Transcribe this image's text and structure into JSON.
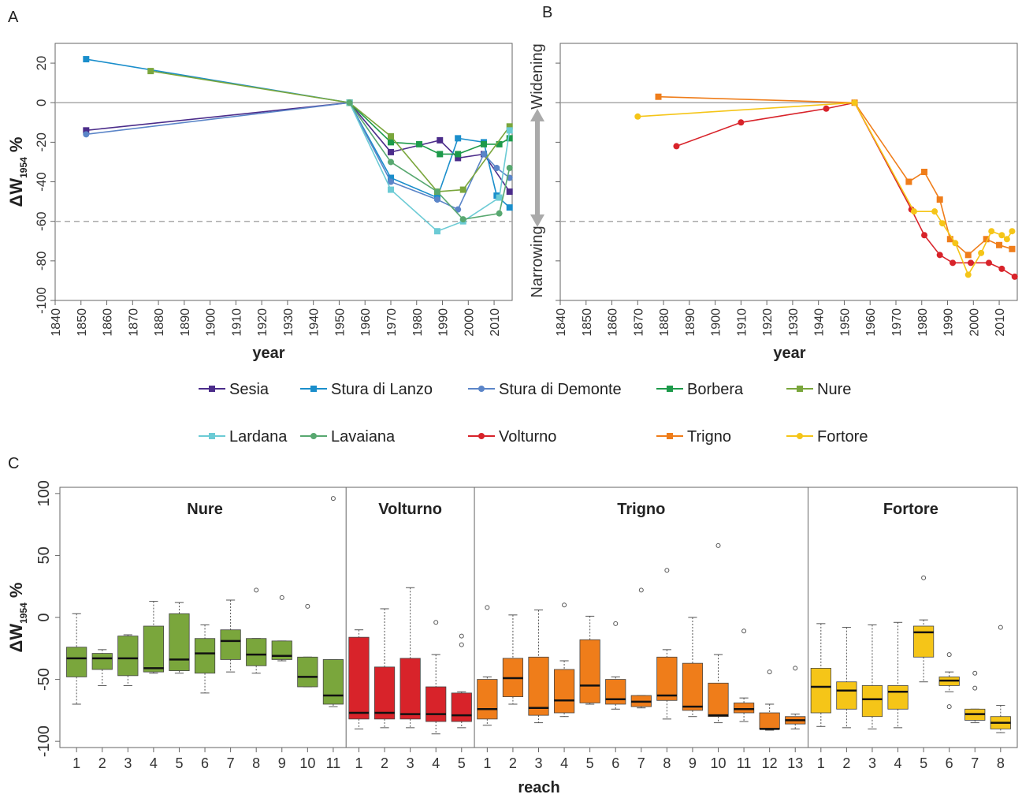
{
  "chart_data": [
    {
      "panel": "A",
      "type": "line",
      "xlabel": "year",
      "ylabel_main": "ΔW",
      "ylabel_sub": "1954",
      "ylabel_unit": " %",
      "xlim": [
        1840,
        2017
      ],
      "ylim": [
        -100,
        30
      ],
      "xticks": [
        1840,
        1850,
        1860,
        1870,
        1880,
        1890,
        1900,
        1910,
        1920,
        1930,
        1940,
        1950,
        1960,
        1970,
        1980,
        1990,
        2000,
        2010
      ],
      "yticks": [
        20,
        0,
        -20,
        -40,
        -60,
        -80,
        -100
      ],
      "reference_lines": [
        0,
        -60
      ],
      "series": [
        {
          "name": "Sesia",
          "color": "#4b2c8a",
          "marker": "square",
          "x": [
            1852,
            1954,
            1970,
            1989,
            1996,
            2006,
            2016
          ],
          "y": [
            -14,
            0,
            -25,
            -19,
            -28,
            -26,
            -45
          ]
        },
        {
          "name": "Stura di Lanzo",
          "color": "#1a8ecb",
          "marker": "square",
          "x": [
            1852,
            1954,
            1970,
            1988,
            1996,
            2006,
            2011,
            2016
          ],
          "y": [
            22,
            0,
            -38,
            -48,
            -18,
            -20,
            -47,
            -53
          ]
        },
        {
          "name": "Stura di Demonte",
          "color": "#5b85c8",
          "marker": "circle",
          "x": [
            1852,
            1954,
            1970,
            1988,
            1996,
            2006,
            2011,
            2016
          ],
          "y": [
            -16,
            0,
            -40,
            -49,
            -54,
            -26,
            -33,
            -38
          ]
        },
        {
          "name": "Borbera",
          "color": "#1d9a4a",
          "marker": "square",
          "x": [
            1954,
            1970,
            1981,
            1989,
            1996,
            2006,
            2012,
            2016
          ],
          "y": [
            0,
            -20,
            -21,
            -26,
            -26,
            -21,
            -21,
            -18
          ]
        },
        {
          "name": "Nure",
          "color": "#7aa63c",
          "marker": "square",
          "x": [
            1877,
            1954,
            1970,
            1988,
            1998,
            2016
          ],
          "y": [
            16,
            0,
            -17,
            -45,
            -44,
            -12
          ]
        },
        {
          "name": "Lardana",
          "color": "#6ccbd5",
          "marker": "square",
          "x": [
            1954,
            1970,
            1988,
            1998,
            2012,
            2016
          ],
          "y": [
            0,
            -44,
            -65,
            -60,
            -48,
            -14
          ]
        },
        {
          "name": "Lavaiana",
          "color": "#58a870",
          "marker": "circle",
          "x": [
            1954,
            1970,
            1988,
            1998,
            2012,
            2016
          ],
          "y": [
            0,
            -30,
            -45,
            -59,
            -56,
            -33
          ]
        }
      ]
    },
    {
      "panel": "B",
      "type": "line",
      "xlabel": "year",
      "ylabel_top": "Widening",
      "ylabel_bottom": "Narrowing",
      "xlim": [
        1840,
        2017
      ],
      "ylim": [
        -100,
        30
      ],
      "xticks": [
        1840,
        1850,
        1860,
        1870,
        1880,
        1890,
        1900,
        1910,
        1920,
        1930,
        1940,
        1950,
        1960,
        1970,
        1980,
        1990,
        2000,
        2010
      ],
      "reference_lines": [
        0,
        -60
      ],
      "series": [
        {
          "name": "Volturno",
          "color": "#d8232a",
          "marker": "circle",
          "x": [
            1885,
            1910,
            1943,
            1954,
            1976,
            1981,
            1987,
            1992,
            1999,
            2006,
            2011,
            2016
          ],
          "y": [
            -22,
            -10,
            -3,
            0,
            -54,
            -67,
            -77,
            -81,
            -81,
            -81,
            -84,
            -88
          ]
        },
        {
          "name": "Trigno",
          "color": "#ef7d1a",
          "marker": "square",
          "x": [
            1878,
            1954,
            1975,
            1981,
            1987,
            1991,
            1998,
            2005,
            2010,
            2015
          ],
          "y": [
            3,
            0,
            -40,
            -35,
            -49,
            -69,
            -77,
            -69,
            -72,
            -74
          ]
        },
        {
          "name": "Fortore",
          "color": "#f5c518",
          "marker": "circle",
          "x": [
            1870,
            1954,
            1977,
            1985,
            1988,
            1993,
            1998,
            2003,
            2007,
            2011,
            2013,
            2015
          ],
          "y": [
            -7,
            0,
            -55,
            -55,
            -61,
            -71,
            -87,
            -76,
            -65,
            -67,
            -69,
            -65
          ]
        }
      ]
    },
    {
      "panel": "C",
      "type": "boxplot",
      "xlabel": "reach",
      "ylabel_main": "ΔW",
      "ylabel_sub": "1954",
      "ylabel_unit": " %",
      "ylim": [
        -105,
        105
      ],
      "yticks": [
        100,
        50,
        0,
        -50,
        -100
      ],
      "groups": [
        {
          "name": "Nure",
          "color": "#7aa63c",
          "boxes": [
            {
              "reach": "1",
              "q1": -48,
              "median": -33,
              "q3": -24,
              "low": -70,
              "high": 3,
              "outliers": []
            },
            {
              "reach": "2",
              "q1": -42,
              "median": -33,
              "q3": -29,
              "low": -55,
              "high": -26,
              "outliers": []
            },
            {
              "reach": "3",
              "q1": -47,
              "median": -33,
              "q3": -15,
              "low": -55,
              "high": -14,
              "outliers": []
            },
            {
              "reach": "4",
              "q1": -44,
              "median": -41,
              "q3": -7,
              "low": -45,
              "high": 13,
              "outliers": []
            },
            {
              "reach": "5",
              "q1": -43,
              "median": -34,
              "q3": 3,
              "low": -45,
              "high": 12,
              "outliers": []
            },
            {
              "reach": "6",
              "q1": -45,
              "median": -29,
              "q3": -17,
              "low": -61,
              "high": -6,
              "outliers": []
            },
            {
              "reach": "7",
              "q1": -34,
              "median": -19,
              "q3": -10,
              "low": -44,
              "high": 14,
              "outliers": []
            },
            {
              "reach": "8",
              "q1": -39,
              "median": -30,
              "q3": -17,
              "low": -45,
              "high": -17,
              "outliers": [
                22
              ]
            },
            {
              "reach": "9",
              "q1": -34,
              "median": -31,
              "q3": -19,
              "low": -35,
              "high": -19,
              "outliers": [
                16
              ]
            },
            {
              "reach": "10",
              "q1": -56,
              "median": -48,
              "q3": -32,
              "low": -56,
              "high": -32,
              "outliers": [
                9
              ]
            },
            {
              "reach": "11",
              "q1": -70,
              "median": -63,
              "q3": -34,
              "low": -72,
              "high": -34,
              "outliers": [
                96
              ]
            }
          ]
        },
        {
          "name": "Volturno",
          "color": "#d8232a",
          "boxes": [
            {
              "reach": "1",
              "q1": -82,
              "median": -77,
              "q3": -16,
              "low": -90,
              "high": -10,
              "outliers": []
            },
            {
              "reach": "2",
              "q1": -82,
              "median": -77,
              "q3": -40,
              "low": -89,
              "high": 7,
              "outliers": []
            },
            {
              "reach": "3",
              "q1": -82,
              "median": -78,
              "q3": -33,
              "low": -89,
              "high": 24,
              "outliers": []
            },
            {
              "reach": "4",
              "q1": -84,
              "median": -78,
              "q3": -56,
              "low": -94,
              "high": -30,
              "outliers": [
                -4
              ]
            },
            {
              "reach": "5",
              "q1": -84,
              "median": -79,
              "q3": -61,
              "low": -89,
              "high": -60,
              "outliers": [
                -15,
                -22
              ]
            }
          ]
        },
        {
          "name": "Trigno",
          "color": "#ef7d1a",
          "boxes": [
            {
              "reach": "1",
              "q1": -82,
              "median": -74,
              "q3": -50,
              "low": -87,
              "high": -48,
              "outliers": [
                8
              ]
            },
            {
              "reach": "2",
              "q1": -64,
              "median": -49,
              "q3": -33,
              "low": -70,
              "high": 2,
              "outliers": []
            },
            {
              "reach": "3",
              "q1": -79,
              "median": -73,
              "q3": -32,
              "low": -85,
              "high": 6,
              "outliers": []
            },
            {
              "reach": "4",
              "q1": -77,
              "median": -67,
              "q3": -42,
              "low": -80,
              "high": -35,
              "outliers": [
                10
              ]
            },
            {
              "reach": "5",
              "q1": -69,
              "median": -55,
              "q3": -18,
              "low": -70,
              "high": 1,
              "outliers": []
            },
            {
              "reach": "6",
              "q1": -70,
              "median": -66,
              "q3": -50,
              "low": -74,
              "high": -48,
              "outliers": [
                -5
              ]
            },
            {
              "reach": "7",
              "q1": -72,
              "median": -68,
              "q3": -63,
              "low": -73,
              "high": -63,
              "outliers": [
                22
              ]
            },
            {
              "reach": "8",
              "q1": -67,
              "median": -63,
              "q3": -32,
              "low": -82,
              "high": -26,
              "outliers": [
                38
              ]
            },
            {
              "reach": "9",
              "q1": -75,
              "median": -72,
              "q3": -37,
              "low": -80,
              "high": 0,
              "outliers": []
            },
            {
              "reach": "10",
              "q1": -80,
              "median": -79,
              "q3": -53,
              "low": -85,
              "high": -30,
              "outliers": [
                58
              ]
            },
            {
              "reach": "11",
              "q1": -77,
              "median": -74,
              "q3": -69,
              "low": -84,
              "high": -65,
              "outliers": [
                -11
              ]
            },
            {
              "reach": "12",
              "q1": -90,
              "median": -90,
              "q3": -77,
              "low": -91,
              "high": -70,
              "outliers": [
                -44
              ]
            },
            {
              "reach": "13",
              "q1": -86,
              "median": -83,
              "q3": -80,
              "low": -90,
              "high": -78,
              "outliers": [
                -41
              ]
            }
          ]
        },
        {
          "name": "Fortore",
          "color": "#f5c518",
          "boxes": [
            {
              "reach": "1",
              "q1": -77,
              "median": -56,
              "q3": -41,
              "low": -88,
              "high": -5,
              "outliers": []
            },
            {
              "reach": "2",
              "q1": -74,
              "median": -59,
              "q3": -52,
              "low": -89,
              "high": -8,
              "outliers": []
            },
            {
              "reach": "3",
              "q1": -80,
              "median": -66,
              "q3": -55,
              "low": -90,
              "high": -6,
              "outliers": []
            },
            {
              "reach": "4",
              "q1": -74,
              "median": -60,
              "q3": -55,
              "low": -89,
              "high": -4,
              "outliers": []
            },
            {
              "reach": "5",
              "q1": -32,
              "median": -12,
              "q3": -7,
              "low": -52,
              "high": -2,
              "outliers": [
                32
              ]
            },
            {
              "reach": "6",
              "q1": -55,
              "median": -51,
              "q3": -48,
              "low": -60,
              "high": -44,
              "outliers": [
                -30,
                -72
              ]
            },
            {
              "reach": "7",
              "q1": -83,
              "median": -78,
              "q3": -74,
              "low": -85,
              "high": -74,
              "outliers": [
                -45,
                -57
              ]
            },
            {
              "reach": "8",
              "q1": -90,
              "median": -85,
              "q3": -80,
              "low": -93,
              "high": -71,
              "outliers": [
                -8
              ]
            }
          ]
        }
      ]
    }
  ],
  "panel_labels": {
    "a": "A",
    "b": "B",
    "c": "C"
  },
  "legend": [
    {
      "name": "Sesia",
      "color": "#4b2c8a",
      "marker": "square"
    },
    {
      "name": "Stura di Lanzo",
      "color": "#1a8ecb",
      "marker": "square"
    },
    {
      "name": "Stura di Demonte",
      "color": "#5b85c8",
      "marker": "circle"
    },
    {
      "name": "Borbera",
      "color": "#1d9a4a",
      "marker": "square"
    },
    {
      "name": "Nure",
      "color": "#7aa63c",
      "marker": "square"
    },
    {
      "name": "Lardana",
      "color": "#6ccbd5",
      "marker": "square"
    },
    {
      "name": "Lavaiana",
      "color": "#58a870",
      "marker": "circle"
    },
    {
      "name": "Volturno",
      "color": "#d8232a",
      "marker": "circle"
    },
    {
      "name": "Trigno",
      "color": "#ef7d1a",
      "marker": "square"
    },
    {
      "name": "Fortore",
      "color": "#f5c518",
      "marker": "circle"
    }
  ]
}
